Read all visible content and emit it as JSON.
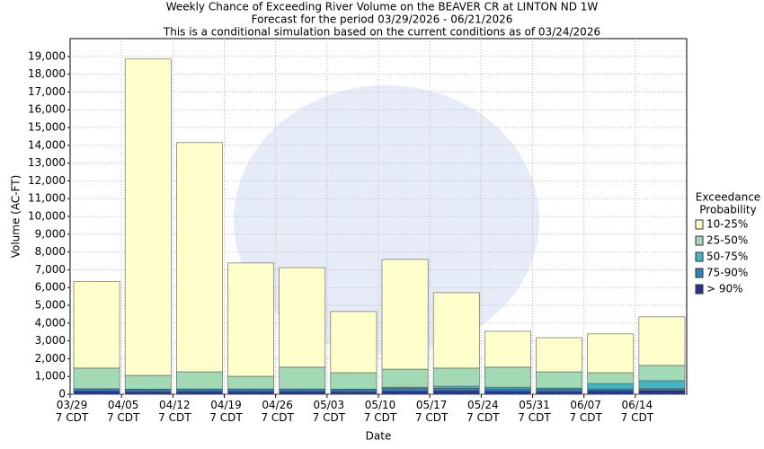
{
  "chart_data": {
    "type": "stacked_bar",
    "title": "Weekly Chance of Exceeding River Volume on the BEAVER CR at LINTON ND 1W",
    "subtitle": [
      "Forecast for the period 03/29/2026 - 06/21/2026",
      "This is a conditional simulation based on the current conditions as of 03/24/2026"
    ],
    "x_label": "Date",
    "y_label": "Volume (AC-FT)",
    "legend_title": [
      "Exceedance",
      "Probability"
    ],
    "categories": [
      "03/29\n7 CDT",
      "04/05\n7 CDT",
      "04/12\n7 CDT",
      "04/19\n7 CDT",
      "04/26\n7 CDT",
      "05/03\n7 CDT",
      "05/10\n7 CDT",
      "05/17\n7 CDT",
      "05/24\n7 CDT",
      "05/31\n7 CDT",
      "06/07\n7 CDT",
      "06/14\n7 CDT"
    ],
    "series": [
      {
        "name": "10-25%",
        "color": "#ffffcc",
        "values": [
          4880,
          17790,
          12890,
          6370,
          5600,
          3440,
          6170,
          4240,
          2020,
          1920,
          2180,
          2730
        ]
      },
      {
        "name": "25-50%",
        "color": "#a1dab4",
        "values": [
          1160,
          770,
          960,
          710,
          1220,
          920,
          1010,
          1020,
          1120,
          910,
          610,
          860
        ]
      },
      {
        "name": "50-75%",
        "color": "#41b6c4",
        "values": [
          10,
          10,
          10,
          10,
          10,
          10,
          70,
          110,
          100,
          60,
          300,
          440
        ]
      },
      {
        "name": "75-90%",
        "color": "#2c7fb8",
        "values": [
          120,
          130,
          130,
          130,
          130,
          130,
          150,
          140,
          130,
          130,
          100,
          100
        ]
      },
      {
        "name": "> 90%",
        "color": "#253494",
        "values": [
          180,
          150,
          160,
          160,
          160,
          150,
          180,
          200,
          170,
          160,
          200,
          220
        ]
      }
    ],
    "ylim": [
      0,
      20000
    ],
    "yticks": [
      0,
      {
        "value": 1000,
        "label": "1,000"
      },
      {
        "value": 2000,
        "label": "2,000"
      },
      {
        "value": 3000,
        "label": "3,000"
      },
      {
        "value": 4000,
        "label": "4,000"
      },
      {
        "value": 5000,
        "label": "5,000"
      },
      {
        "value": 6000,
        "label": "6,000"
      },
      {
        "value": 7000,
        "label": "7,000"
      },
      {
        "value": 8000,
        "label": "8,000"
      },
      {
        "value": 9000,
        "label": "9,000"
      },
      {
        "value": 10000,
        "label": "10,000"
      },
      {
        "value": 11000,
        "label": "11,000"
      },
      {
        "value": 12000,
        "label": "12,000"
      },
      {
        "value": 13000,
        "label": "13,000"
      },
      {
        "value": 14000,
        "label": "14,000"
      },
      {
        "value": 15000,
        "label": "15,000"
      },
      {
        "value": 16000,
        "label": "16,000"
      },
      {
        "value": 17000,
        "label": "17,000"
      },
      {
        "value": 18000,
        "label": "18,000"
      },
      {
        "value": 19000,
        "label": "19,000"
      }
    ],
    "grid": true,
    "legend": "right"
  }
}
